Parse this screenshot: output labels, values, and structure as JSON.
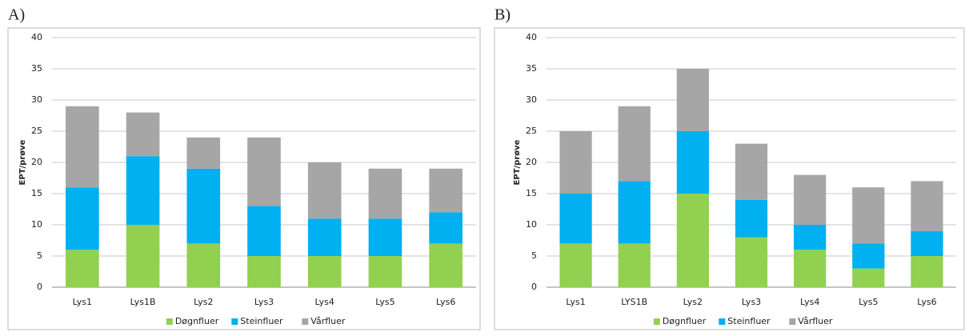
{
  "chart_data": [
    {
      "type": "bar",
      "stacked": true,
      "panel_label": "A)",
      "y_label": "EPT/prøve",
      "categories": [
        "Lys1",
        "Lys1B",
        "Lys2",
        "Lys3",
        "Lys4",
        "Lys5",
        "Lys6"
      ],
      "series": [
        {
          "name": "Døgnfluer",
          "color": "#92d050",
          "values": [
            6,
            10,
            7,
            5,
            5,
            5,
            7
          ]
        },
        {
          "name": "Steinfluer",
          "color": "#00b0f0",
          "values": [
            10,
            11,
            12,
            8,
            6,
            6,
            5
          ]
        },
        {
          "name": "Vårfluer",
          "color": "#a6a6a6",
          "values": [
            13,
            7,
            5,
            11,
            9,
            8,
            7
          ]
        }
      ],
      "ylim": [
        0,
        40
      ],
      "yticks": [
        0,
        5,
        10,
        15,
        20,
        25,
        30,
        35,
        40
      ],
      "grid": true,
      "legend": "bottom"
    },
    {
      "type": "bar",
      "stacked": true,
      "panel_label": "B)",
      "y_label": "EPT/prøve",
      "categories": [
        "Lys1",
        "LYS1B",
        "Lys2",
        "Lys3",
        "Lys4",
        "Lys5",
        "Lys6"
      ],
      "series": [
        {
          "name": "Døgnfluer",
          "color": "#92d050",
          "values": [
            7,
            7,
            15,
            8,
            6,
            3,
            5
          ]
        },
        {
          "name": "Steinfluer",
          "color": "#00b0f0",
          "values": [
            8,
            10,
            10,
            6,
            4,
            4,
            4
          ]
        },
        {
          "name": "Vårfluer",
          "color": "#a6a6a6",
          "values": [
            10,
            12,
            10,
            9,
            8,
            9,
            8
          ]
        }
      ],
      "ylim": [
        0,
        40
      ],
      "yticks": [
        0,
        5,
        10,
        15,
        20,
        25,
        30,
        35,
        40
      ],
      "grid": true,
      "legend": "bottom"
    }
  ]
}
